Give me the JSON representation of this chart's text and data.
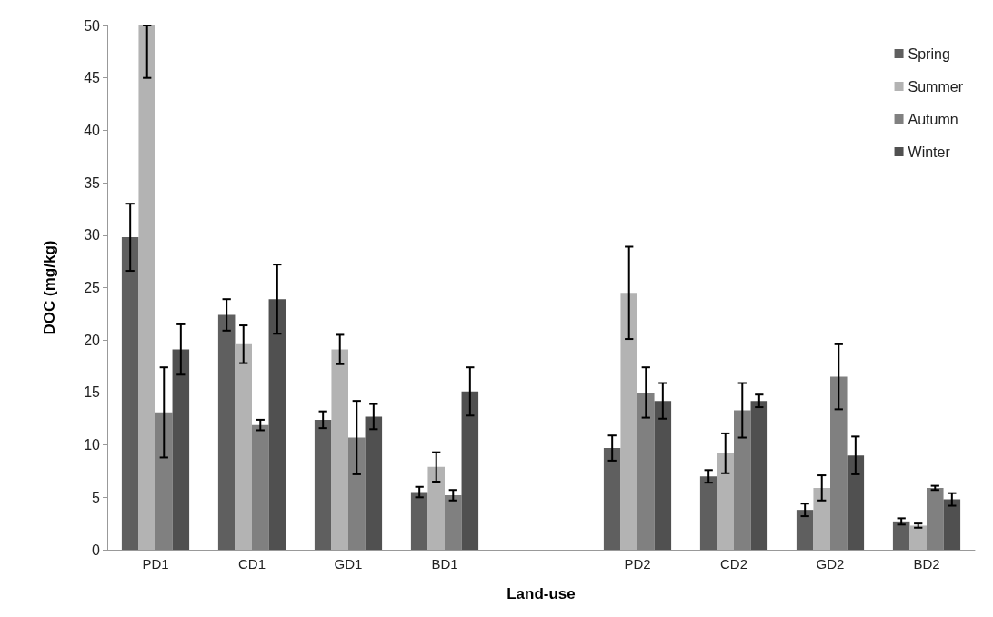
{
  "chart_data": {
    "type": "bar",
    "xlabel": "Land-use",
    "ylabel": "DOC (mg/kg)",
    "categories": [
      "PD1",
      "CD1",
      "GD1",
      "BD1",
      null,
      "PD2",
      "CD2",
      "GD2",
      "BD2"
    ],
    "series": [
      {
        "name": "Spring",
        "color": "#5f5f5f",
        "values": [
          29.8,
          22.4,
          12.4,
          5.5,
          null,
          9.7,
          7.0,
          3.8,
          2.7
        ],
        "errors": [
          3.2,
          1.5,
          0.8,
          0.5,
          null,
          1.2,
          0.6,
          0.6,
          0.3
        ]
      },
      {
        "name": "Summer",
        "color": "#b3b3b3",
        "values": [
          50,
          19.6,
          19.1,
          7.9,
          null,
          24.5,
          9.2,
          5.9,
          2.3
        ],
        "errors": [
          [
            45,
            50
          ],
          1.8,
          1.4,
          1.4,
          null,
          4.4,
          1.9,
          1.2,
          0.2
        ]
      },
      {
        "name": "Autumn",
        "color": "#808080",
        "values": [
          13.1,
          11.9,
          10.7,
          5.2,
          null,
          15.0,
          13.3,
          16.5,
          5.9
        ],
        "errors": [
          4.3,
          0.5,
          3.5,
          0.5,
          null,
          2.4,
          2.6,
          3.1,
          0.2
        ]
      },
      {
        "name": "Winter",
        "color": "#505050",
        "values": [
          19.1,
          23.9,
          12.7,
          15.1,
          null,
          14.2,
          14.2,
          9.0,
          4.8
        ],
        "errors": [
          2.4,
          3.3,
          1.2,
          2.3,
          null,
          1.7,
          0.6,
          1.8,
          0.6
        ]
      }
    ],
    "ylim": [
      0,
      50
    ],
    "yticks": [
      0,
      5,
      10,
      15,
      20,
      25,
      30,
      35,
      40,
      45,
      50
    ],
    "grid": false,
    "legend": "top right"
  }
}
